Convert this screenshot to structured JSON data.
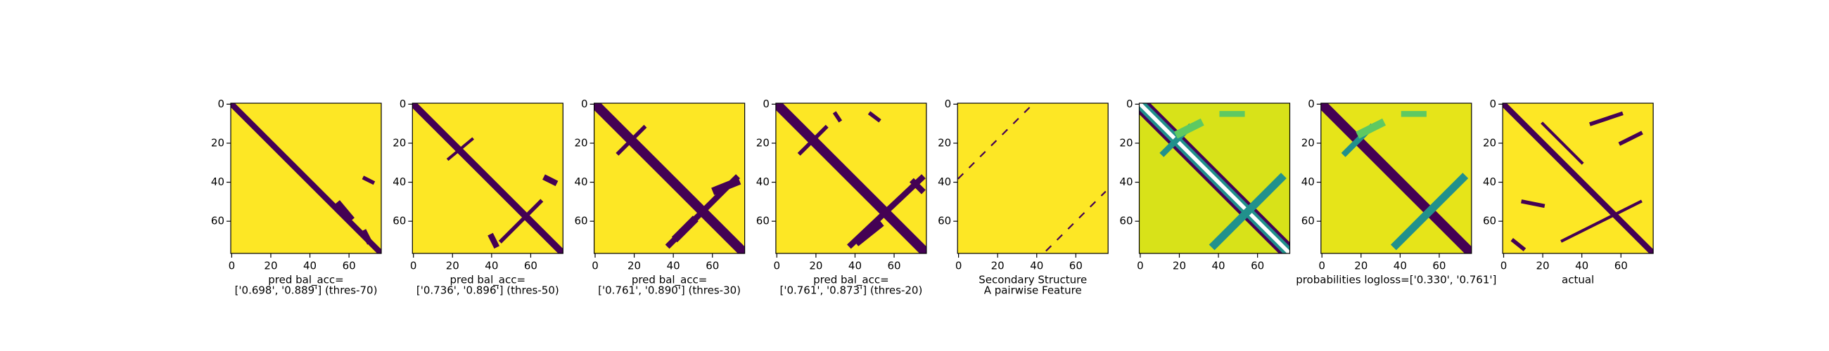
{
  "chart_data": [
    {
      "type": "heatmap",
      "xlim": [
        -0.5,
        76.5
      ],
      "ylim": [
        76.5,
        -0.5
      ],
      "xticks": [
        0,
        20,
        40,
        60
      ],
      "yticks": [
        0,
        20,
        40,
        60
      ],
      "xlabel": [
        "pred bal_acc=",
        "['0.698', '0.889'] (thres-70)"
      ]
    },
    {
      "type": "heatmap",
      "xlim": [
        -0.5,
        76.5
      ],
      "ylim": [
        76.5,
        -0.5
      ],
      "xticks": [
        0,
        20,
        40,
        60
      ],
      "yticks": [
        0,
        20,
        40,
        60
      ],
      "xlabel": [
        "pred bal_acc=",
        "['0.736', '0.896'] (thres-50)"
      ]
    },
    {
      "type": "heatmap",
      "xlim": [
        -0.5,
        76.5
      ],
      "ylim": [
        76.5,
        -0.5
      ],
      "xticks": [
        0,
        20,
        40,
        60
      ],
      "yticks": [
        0,
        20,
        40,
        60
      ],
      "xlabel": [
        "pred bal_acc=",
        "['0.761', '0.890'] (thres-30)"
      ]
    },
    {
      "type": "heatmap",
      "xlim": [
        -0.5,
        76.5
      ],
      "ylim": [
        76.5,
        -0.5
      ],
      "xticks": [
        0,
        20,
        40,
        60
      ],
      "yticks": [
        0,
        20,
        40,
        60
      ],
      "xlabel": [
        "pred bal_acc=",
        "['0.761', '0.873'] (thres-20)"
      ]
    },
    {
      "type": "heatmap",
      "xlim": [
        -0.5,
        76.5
      ],
      "ylim": [
        76.5,
        -0.5
      ],
      "xticks": [
        0,
        20,
        40,
        60
      ],
      "yticks": [
        0,
        20,
        40,
        60
      ],
      "xlabel": [
        "Secondary Structure",
        "A pairwise Feature"
      ]
    },
    {
      "type": "heatmap",
      "xlim": [
        -0.5,
        76.5
      ],
      "ylim": [
        76.5,
        -0.5
      ],
      "xticks": [
        0,
        20,
        40,
        60
      ],
      "yticks": [
        0,
        20,
        40,
        60
      ]
    },
    {
      "type": "heatmap",
      "xlim": [
        -0.5,
        76.5
      ],
      "ylim": [
        76.5,
        -0.5
      ],
      "xticks": [
        0,
        20,
        40,
        60
      ],
      "yticks": [
        0,
        20,
        40,
        60
      ],
      "xlabel": [
        "probabilities logloss=['0.330', '0.761']"
      ]
    },
    {
      "type": "heatmap",
      "xlim": [
        -0.5,
        76.5
      ],
      "ylim": [
        76.5,
        -0.5
      ],
      "xticks": [
        0,
        20,
        40,
        60
      ],
      "yticks": [
        0,
        20,
        40,
        60
      ],
      "xlabel": [
        "actual"
      ]
    }
  ]
}
